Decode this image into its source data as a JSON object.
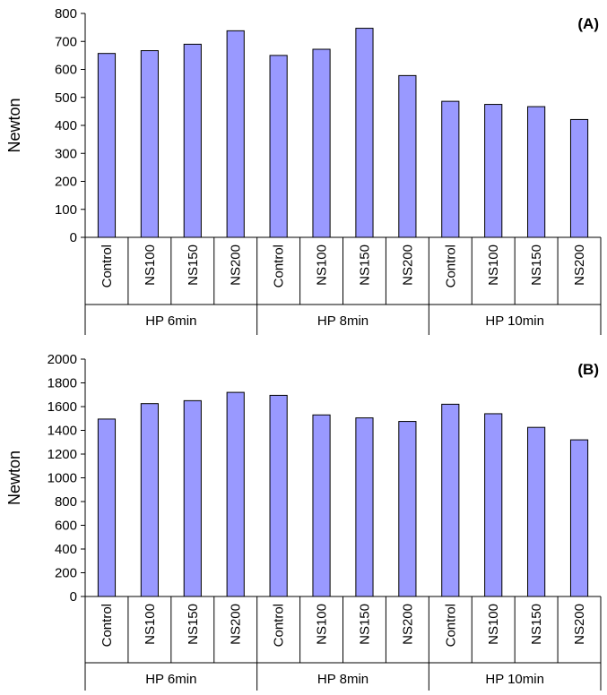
{
  "chart_data": [
    {
      "type": "bar",
      "panel_label": "(A)",
      "ylabel": "Newton",
      "ylim": [
        0,
        800
      ],
      "yticks": [
        0,
        100,
        200,
        300,
        400,
        500,
        600,
        700,
        800
      ],
      "groups": [
        {
          "name": "HP 6min",
          "categories": [
            "Control",
            "NS100",
            "NS150",
            "NS200"
          ],
          "values": [
            657,
            667,
            690,
            738
          ]
        },
        {
          "name": "HP 8min",
          "categories": [
            "Control",
            "NS100",
            "NS150",
            "NS200"
          ],
          "values": [
            650,
            672,
            747,
            578
          ]
        },
        {
          "name": "HP 10min",
          "categories": [
            "Control",
            "NS100",
            "NS150",
            "NS200"
          ],
          "values": [
            486,
            475,
            467,
            421
          ]
        }
      ],
      "bar_color": "#9999ff",
      "grid": false
    },
    {
      "type": "bar",
      "panel_label": "(B)",
      "ylabel": "Newton",
      "ylim": [
        0,
        2000
      ],
      "yticks": [
        0,
        200,
        400,
        600,
        800,
        1000,
        1200,
        1400,
        1600,
        1800,
        2000
      ],
      "groups": [
        {
          "name": "HP 6min",
          "categories": [
            "Control",
            "NS100",
            "NS150",
            "NS200"
          ],
          "values": [
            1495,
            1625,
            1650,
            1720
          ]
        },
        {
          "name": "HP 8min",
          "categories": [
            "Control",
            "NS100",
            "NS150",
            "NS200"
          ],
          "values": [
            1695,
            1530,
            1505,
            1475
          ]
        },
        {
          "name": "HP 10min",
          "categories": [
            "Control",
            "NS100",
            "NS150",
            "NS200"
          ],
          "values": [
            1620,
            1540,
            1425,
            1320
          ]
        }
      ],
      "bar_color": "#9999ff",
      "grid": false
    }
  ]
}
